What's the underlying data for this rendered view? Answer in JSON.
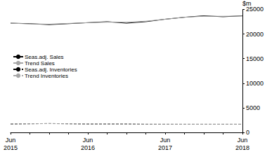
{
  "chart_data": {
    "type": "line",
    "categories": [
      "Jun 2015",
      null,
      null,
      null,
      "Jun 2016",
      null,
      null,
      null,
      "Jun 2017",
      null,
      null,
      null,
      "Jun 2018"
    ],
    "y_label": "$m",
    "ylim": [
      0,
      25000
    ],
    "yticks": [
      0,
      5000,
      10000,
      15000,
      20000,
      25000
    ],
    "grid": false,
    "legend": "left",
    "series": [
      {
        "name": "Seas.adj. Sales",
        "color": "#000000",
        "line_style": "solid",
        "values": [
          22200,
          22100,
          21900,
          22100,
          22300,
          22500,
          22200,
          22500,
          23000,
          23400,
          23700,
          23500,
          23700
        ]
      },
      {
        "name": "Trend Sales",
        "color": "#a6a6a6",
        "line_style": "solid",
        "values": [
          22200,
          22050,
          22000,
          22150,
          22300,
          22400,
          22400,
          22600,
          23000,
          23400,
          23600,
          23600,
          23650
        ]
      },
      {
        "name": "Seas.adj. Inventories",
        "color": "#000000",
        "line_style": "dashed",
        "values": [
          1700,
          1750,
          1800,
          1750,
          1700,
          1700,
          1700,
          1650,
          1650,
          1650,
          1650,
          1650,
          1650
        ]
      },
      {
        "name": "Trend Inventories",
        "color": "#a6a6a6",
        "line_style": "dashed",
        "values": [
          1720,
          1760,
          1780,
          1750,
          1720,
          1700,
          1690,
          1670,
          1660,
          1650,
          1650,
          1650,
          1650
        ]
      }
    ]
  }
}
